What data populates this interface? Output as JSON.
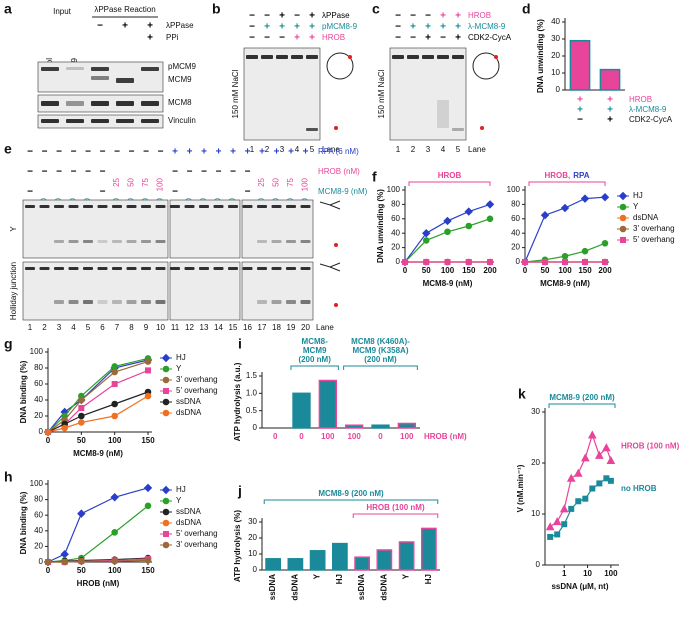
{
  "panel_letters": [
    "a",
    "b",
    "c",
    "d",
    "e",
    "f",
    "g",
    "h",
    "i",
    "j",
    "k"
  ],
  "gel_a": {
    "input": "Input",
    "reaction": "λPPase Reaction",
    "lanes": [
      "Control",
      "sgMCM9"
    ],
    "rows": [
      {
        "label": "λPPase",
        "color": "#000000",
        "marks": [
          "−",
          "+",
          "+"
        ]
      },
      {
        "label": "PPi",
        "color": "#000000",
        "marks": [
          "+"
        ]
      }
    ],
    "bands": [
      "pMCM9",
      "MCM9",
      "MCM8",
      "Vinculin"
    ]
  },
  "gel_b": {
    "rows": [
      {
        "label": "λPPase",
        "color": "#000000",
        "marks": [
          "−",
          "−",
          "+",
          "−",
          "+"
        ]
      },
      {
        "label": "pMCM8-9",
        "color": "#1a8a9a",
        "marks": [
          "−",
          "+",
          "+",
          "+",
          "+"
        ]
      },
      {
        "label": "HROB",
        "color": "#e8449a",
        "marks": [
          "−",
          "−",
          "−",
          "+",
          "+"
        ]
      }
    ],
    "salt": "150 mM NaCl",
    "lanes": [
      1,
      2,
      3,
      4,
      5
    ],
    "lane_label": "Lane"
  },
  "gel_c": {
    "rows": [
      {
        "label": "HROB",
        "color": "#e8449a",
        "marks": [
          "−",
          "−",
          "−",
          "+",
          "+"
        ]
      },
      {
        "label": "λ-MCM8-9",
        "color": "#1a8a9a",
        "marks": [
          "−",
          "+",
          "+",
          "+",
          "+"
        ]
      },
      {
        "label": "CDK2-CycA",
        "color": "#000000",
        "marks": [
          "−",
          "−",
          "+",
          "−",
          "+"
        ]
      }
    ],
    "salt": "150 mM NaCl",
    "lanes": [
      1,
      2,
      3,
      4,
      5
    ],
    "lane_label": "Lane"
  },
  "gel_e": {
    "rows": [
      {
        "label": "RPA (6 nM)",
        "color": "#2a3fc9",
        "marks": [
          "−",
          "−",
          "−",
          "−",
          "−",
          "−",
          "−",
          "−",
          "−",
          "−",
          "+",
          "+",
          "+",
          "+",
          "+",
          "+",
          "+",
          "+",
          "+",
          "+"
        ]
      },
      {
        "label": "HROB (nM)",
        "color": "#e8449a",
        "marks": [
          "−",
          "−",
          "−",
          "−",
          "−",
          "−",
          "25",
          "50",
          "75",
          "100",
          "−",
          "−",
          "−",
          "−",
          "−",
          "−",
          "25",
          "50",
          "75",
          "100"
        ]
      },
      {
        "label": "MCM8-9 (nM)",
        "color": "#1a8a9a",
        "marks": [
          "−",
          "50",
          "100",
          "150",
          "200",
          "−",
          "100",
          "100",
          "100",
          "100",
          "−",
          "50",
          "100",
          "150",
          "200",
          "−",
          "100",
          "100",
          "100",
          "100"
        ]
      }
    ],
    "substrates": [
      "Y",
      "Holliday junction"
    ],
    "lanes": [
      1,
      2,
      3,
      4,
      5,
      6,
      7,
      8,
      9,
      10,
      11,
      12,
      13,
      14,
      15,
      16,
      17,
      18,
      19,
      20
    ],
    "lane_label": "Lane"
  },
  "chart_data": [
    {
      "type": "bar",
      "ylabel": "DNA unwinding (%)",
      "categories": [
        null,
        null
      ],
      "values": [
        29,
        12
      ],
      "colors": [
        "#e8449a",
        "#e8449a"
      ],
      "edge_colors": [
        "#1a8a9a",
        "#1a8a9a"
      ],
      "ylim": [
        0,
        40
      ],
      "yticks": [
        0,
        10,
        20,
        30,
        40
      ],
      "condition_rows": [
        {
          "label": "HROB",
          "color": "#e8449a",
          "marks": [
            "+",
            "+"
          ]
        },
        {
          "label": "λ-MCM8-9",
          "color": "#1a8a9a",
          "marks": [
            "+",
            "+"
          ]
        },
        {
          "label": "CDK2-CycA",
          "color": "#000000",
          "marks": [
            "−",
            "+"
          ]
        }
      ]
    },
    {
      "type": "line",
      "ylabel": "DNA unwinding (%)",
      "xlabel": "MCM8-9 (nM)",
      "x": [
        0,
        50,
        100,
        150,
        200
      ],
      "series": [
        {
          "color": "#2a3fc9",
          "marker": "diamond",
          "values": [
            0,
            40,
            57,
            70,
            80
          ]
        },
        {
          "color": "#2aa02a",
          "marker": "circle",
          "values": [
            0,
            30,
            42,
            50,
            60
          ]
        },
        {
          "color": "#f07020",
          "marker": "circle",
          "values": [
            0,
            0,
            0,
            0,
            0
          ]
        },
        {
          "color": "#9a6a3a",
          "marker": "circle",
          "values": [
            0,
            0,
            0,
            0,
            0
          ]
        },
        {
          "color": "#e8449a",
          "marker": "square",
          "values": [
            0,
            0,
            0,
            0,
            0
          ]
        }
      ],
      "xlim": [
        0,
        200
      ],
      "xticks": [
        0,
        50,
        100,
        150,
        200
      ],
      "ylim": [
        0,
        100
      ],
      "yticks": [
        0,
        20,
        40,
        60,
        80,
        100
      ],
      "annotations": [
        {
          "parts": [
            {
              "text": "HROB",
              "color": "#e8449a"
            }
          ]
        }
      ]
    },
    {
      "type": "line",
      "xlabel": "MCM8-9 (nM)",
      "x": [
        0,
        50,
        100,
        150,
        200
      ],
      "legend": "right",
      "series": [
        {
          "name": "HJ",
          "color": "#2a3fc9",
          "marker": "diamond",
          "values": [
            0,
            65,
            75,
            88,
            90
          ]
        },
        {
          "name": "Y",
          "color": "#2aa02a",
          "marker": "circle",
          "values": [
            0,
            3,
            8,
            15,
            26
          ]
        },
        {
          "name": "dsDNA",
          "color": "#f07020",
          "marker": "circle",
          "values": [
            0,
            0,
            0,
            0,
            0
          ]
        },
        {
          "name": "3' overhang",
          "color": "#9a6a3a",
          "marker": "circle",
          "values": [
            0,
            0,
            0,
            0,
            0
          ]
        },
        {
          "name": "5' overhang",
          "color": "#e8449a",
          "marker": "square",
          "values": [
            0,
            0,
            0,
            0,
            0
          ]
        }
      ],
      "xlim": [
        0,
        200
      ],
      "xticks": [
        0,
        50,
        100,
        150,
        200
      ],
      "ylim": [
        0,
        100
      ],
      "yticks": [
        0,
        20,
        40,
        60,
        80,
        100
      ],
      "annotations": [
        {
          "parts": [
            {
              "text": "HROB,",
              "color": "#e8449a"
            },
            {
              "text": "RPA",
              "color": "#2a3fc9"
            }
          ]
        }
      ]
    },
    {
      "type": "line",
      "ylabel": "DNA binding (%)",
      "xlabel": "MCM8-9 (nM)",
      "x": [
        0,
        25,
        50,
        100,
        150
      ],
      "legend": "right",
      "series": [
        {
          "name": "HJ",
          "color": "#2a3fc9",
          "marker": "diamond",
          "values": [
            0,
            25,
            40,
            80,
            90
          ]
        },
        {
          "name": "Y",
          "color": "#2aa02a",
          "marker": "circle",
          "values": [
            0,
            20,
            45,
            82,
            92
          ]
        },
        {
          "name": "3' overhang",
          "color": "#9a6a3a",
          "marker": "circle",
          "values": [
            0,
            15,
            40,
            75,
            88
          ]
        },
        {
          "name": "5' overhang",
          "color": "#e8449a",
          "marker": "square",
          "values": [
            0,
            10,
            30,
            60,
            77
          ]
        },
        {
          "name": "ssDNA",
          "color": "#222222",
          "marker": "circle",
          "values": [
            0,
            10,
            20,
            35,
            50
          ]
        },
        {
          "name": "dsDNA",
          "color": "#f07020",
          "marker": "circle",
          "values": [
            0,
            5,
            12,
            20,
            45
          ]
        }
      ],
      "xlim": [
        0,
        150
      ],
      "xticks": [
        0,
        50,
        100,
        150
      ],
      "ylim": [
        0,
        100
      ],
      "yticks": [
        0,
        20,
        40,
        60,
        80,
        100
      ]
    },
    {
      "type": "line",
      "ylabel": "DNA binding (%)",
      "xlabel": "HROB (nM)",
      "x": [
        0,
        25,
        50,
        100,
        150
      ],
      "legend": "right",
      "series": [
        {
          "name": "HJ",
          "color": "#2a3fc9",
          "marker": "diamond",
          "values": [
            0,
            10,
            62,
            83,
            95
          ]
        },
        {
          "name": "Y",
          "color": "#2aa02a",
          "marker": "circle",
          "values": [
            0,
            2,
            5,
            38,
            72
          ]
        },
        {
          "name": "ssDNA",
          "color": "#222222",
          "marker": "circle",
          "values": [
            0,
            1,
            2,
            3,
            5
          ]
        },
        {
          "name": "dsDNA",
          "color": "#f07020",
          "marker": "circle",
          "values": [
            0,
            0,
            1,
            2,
            3
          ]
        },
        {
          "name": "5' overhang",
          "color": "#e8449a",
          "marker": "square",
          "values": [
            0,
            0,
            1,
            2,
            4
          ]
        },
        {
          "name": "3' overhang",
          "color": "#9a6a3a",
          "marker": "circle",
          "values": [
            0,
            0,
            1,
            1,
            2
          ]
        }
      ],
      "xlim": [
        0,
        150
      ],
      "xticks": [
        0,
        50,
        100,
        150
      ],
      "ylim": [
        0,
        100
      ],
      "yticks": [
        0,
        20,
        40,
        60,
        80,
        100
      ]
    },
    {
      "type": "bar",
      "ylabel": "ATP hydrolysis (a.u.)",
      "xlabel": "HROB (nM)",
      "categories": [
        "0",
        "0",
        "100",
        "100",
        "0",
        "100"
      ],
      "category_color": "#e8449a",
      "values": [
        0,
        1.0,
        1.37,
        0.08,
        0.08,
        0.13
      ],
      "colors": [
        "#999999",
        "#1a8a9a",
        "#1a8a9a",
        "#1a8a9a",
        "#1a8a9a",
        "#1a8a9a"
      ],
      "edge_colors": [
        "#999999",
        "#1a8a9a",
        "#e8449a",
        "#e8449a",
        "#1a8a9a",
        "#e8449a"
      ],
      "ylim": [
        0,
        1.5
      ],
      "yticks": [
        0,
        0.5,
        {
          "value": 1,
          "label": "1.0"
        },
        1.5
      ],
      "annotations": [
        {
          "parts": [
            {
              "text": "MCM8-",
              "color": "#1a8a9a"
            },
            {
              "text": "MCM9",
              "color": "#1a8a9a"
            },
            {
              "text": "(200 nM)",
              "color": "#1a8a9a"
            }
          ]
        },
        {
          "parts": [
            {
              "text": "MCM8 (K460A)-",
              "color": "#1a8a9a"
            },
            {
              "text": "MCM9 (K358A)",
              "color": "#1a8a9a"
            },
            {
              "text": "(200 nM)",
              "color": "#1a8a9a"
            }
          ]
        }
      ]
    },
    {
      "type": "bar",
      "ylabel": "ATP hydrolysis (%)",
      "categories": [
        "ssDNA",
        "dsDNA",
        "Y",
        "HJ",
        "ssDNA",
        "dsDNA",
        "Y",
        "HJ"
      ],
      "values": [
        7,
        7,
        12,
        16.5,
        8,
        12.5,
        17.5,
        26
      ],
      "colors": [
        "#1a8a9a",
        "#1a8a9a",
        "#1a8a9a",
        "#1a8a9a",
        "#1a8a9a",
        "#1a8a9a",
        "#1a8a9a",
        "#1a8a9a"
      ],
      "edge_colors": [
        "#1a8a9a",
        "#1a8a9a",
        "#1a8a9a",
        "#1a8a9a",
        "#e8449a",
        "#e8449a",
        "#e8449a",
        "#e8449a"
      ],
      "ylim": [
        0,
        30
      ],
      "yticks": [
        0,
        10,
        20,
        30
      ],
      "annotations": [
        {
          "parts": [
            {
              "text": "MCM8-9 (200 nM)",
              "color": "#1a8a9a"
            }
          ]
        },
        {
          "parts": [
            {
              "text": "HROB (100 nM)",
              "color": "#e8449a"
            }
          ]
        }
      ]
    },
    {
      "type": "line",
      "ylabel": "V (nM.min⁻¹)",
      "xlabel": "ssDNA (μM, nt)",
      "log_x": true,
      "legend": "line-end",
      "x": [
        0.25,
        0.5,
        1,
        2,
        4,
        8,
        16,
        32,
        64,
        100
      ],
      "series": [
        {
          "name": "HROB (100 nM)",
          "color": "#e8449a",
          "marker": "triangle",
          "values": [
            7.5,
            8.5,
            11,
            17,
            18,
            21,
            25.5,
            21.5,
            23,
            20.5
          ]
        },
        {
          "name": "no HROB",
          "color": "#1a8a9a",
          "marker": "square",
          "values": [
            5.5,
            6,
            8,
            11,
            12.5,
            13,
            15,
            16,
            17,
            16.5
          ]
        }
      ],
      "xlim": [
        0.15,
        150
      ],
      "xticks": [
        1,
        10,
        100
      ],
      "ylim": [
        0,
        30
      ],
      "yticks": [
        0,
        10,
        20,
        30
      ],
      "annotations": [
        {
          "parts": [
            {
              "text": "MCM8-9 (200 nM)",
              "color": "#1a8a9a"
            }
          ]
        }
      ]
    }
  ]
}
